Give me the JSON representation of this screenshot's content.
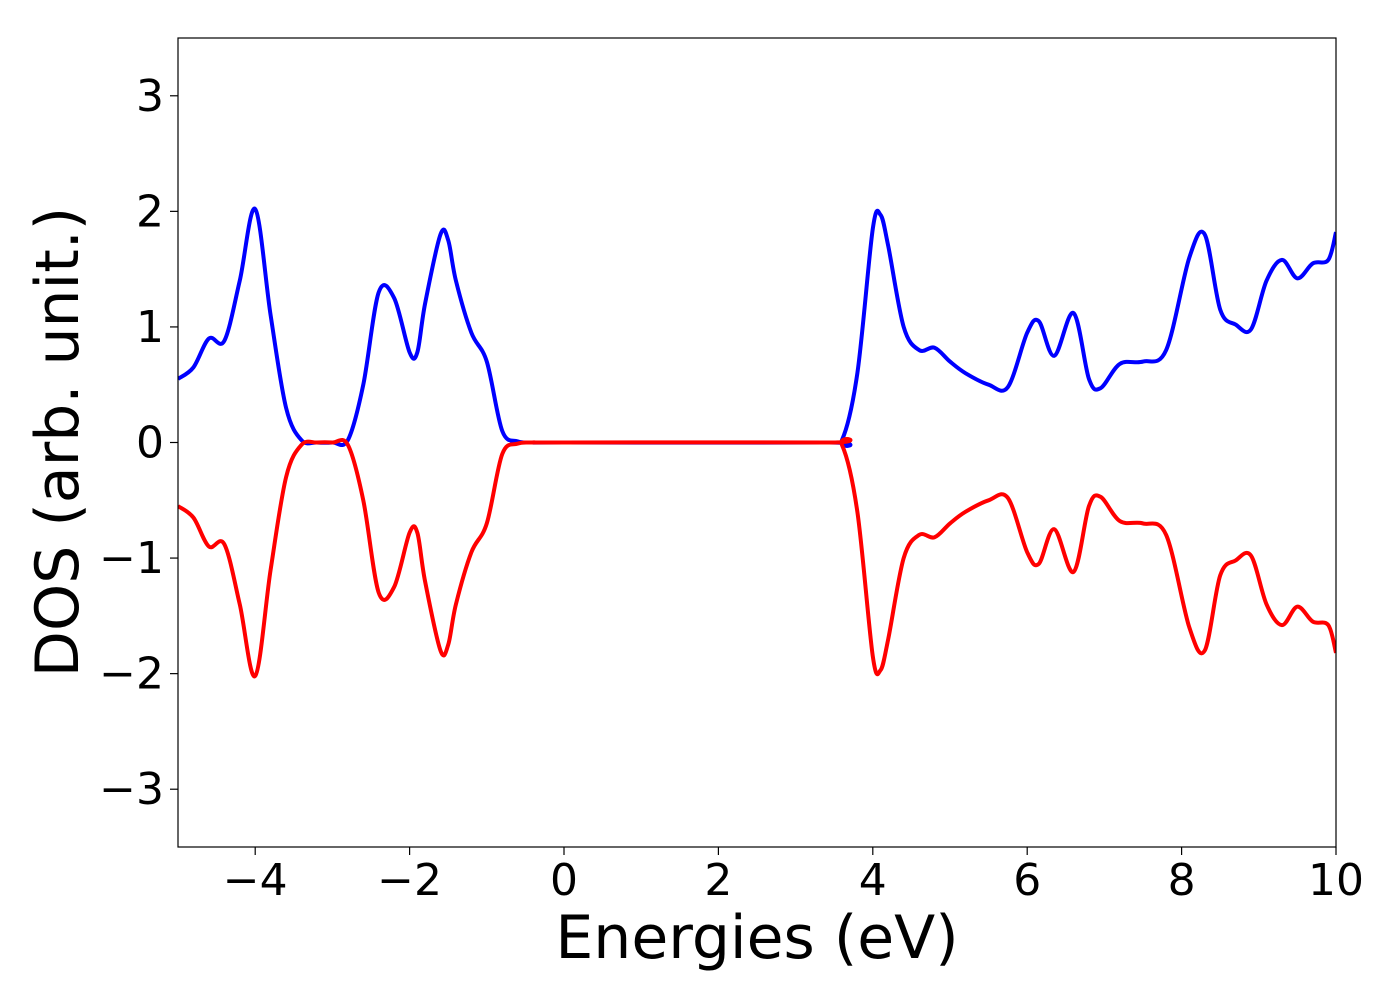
{
  "chart_data": {
    "type": "line",
    "title": "",
    "xlabel": "Energies (eV)",
    "ylabel": "DOS (arb. unit.)",
    "xlim": [
      -5,
      10
    ],
    "ylim": [
      -3.5,
      3.5
    ],
    "xticks": [
      -4,
      -2,
      0,
      2,
      4,
      6,
      8,
      10
    ],
    "yticks": [
      -3,
      -2,
      -1,
      0,
      1,
      2,
      3
    ],
    "xtick_labels": [
      "−4",
      "−2",
      "0",
      "2",
      "4",
      "6",
      "8",
      "10"
    ],
    "ytick_labels": [
      "−3",
      "−2",
      "−1",
      "0",
      "1",
      "2",
      "3"
    ],
    "grid": false,
    "legend": "none",
    "series": [
      {
        "color": "#0000ff",
        "x": [
          -5.0,
          -4.8,
          -4.6,
          -4.4,
          -4.2,
          -4.0,
          -3.8,
          -3.6,
          -3.4,
          -3.2,
          -3.0,
          -2.8,
          -2.6,
          -2.4,
          -2.2,
          -2.0,
          -1.9,
          -1.8,
          -1.6,
          -1.5,
          -1.4,
          -1.2,
          -1.0,
          -0.8,
          -0.6,
          -0.4,
          0.0,
          3.4,
          3.6,
          3.8,
          4.0,
          4.1,
          4.2,
          4.4,
          4.6,
          4.8,
          5.0,
          5.2,
          5.5,
          5.75,
          6.0,
          6.15,
          6.35,
          6.6,
          6.8,
          6.95,
          7.2,
          7.5,
          7.8,
          8.1,
          8.3,
          8.5,
          8.7,
          8.9,
          9.1,
          9.3,
          9.5,
          9.7,
          9.9,
          10.0
        ],
        "values": [
          0.55,
          0.65,
          0.9,
          0.88,
          1.4,
          2.02,
          1.1,
          0.3,
          0.02,
          0.0,
          0.0,
          0.02,
          0.5,
          1.3,
          1.25,
          0.78,
          0.78,
          1.2,
          1.8,
          1.75,
          1.4,
          0.95,
          0.7,
          0.1,
          0.01,
          0.0,
          0.0,
          0.0,
          0.02,
          0.6,
          1.85,
          1.97,
          1.7,
          1.0,
          0.8,
          0.82,
          0.7,
          0.6,
          0.5,
          0.48,
          0.95,
          1.05,
          0.75,
          1.12,
          0.55,
          0.47,
          0.68,
          0.7,
          0.8,
          1.6,
          1.8,
          1.15,
          1.02,
          0.98,
          1.4,
          1.58,
          1.42,
          1.55,
          1.58,
          1.82
        ]
      },
      {
        "color": "#ff0000",
        "x": [
          -5.0,
          -4.8,
          -4.6,
          -4.4,
          -4.2,
          -4.0,
          -3.8,
          -3.6,
          -3.4,
          -3.2,
          -3.0,
          -2.8,
          -2.6,
          -2.4,
          -2.2,
          -2.0,
          -1.9,
          -1.8,
          -1.6,
          -1.5,
          -1.4,
          -1.2,
          -1.0,
          -0.8,
          -0.6,
          -0.4,
          0.0,
          3.4,
          3.6,
          3.8,
          4.0,
          4.1,
          4.2,
          4.4,
          4.6,
          4.8,
          5.0,
          5.2,
          5.5,
          5.75,
          6.0,
          6.15,
          6.35,
          6.6,
          6.8,
          6.95,
          7.2,
          7.5,
          7.8,
          8.1,
          8.3,
          8.5,
          8.7,
          8.9,
          9.1,
          9.3,
          9.5,
          9.7,
          9.9,
          10.0
        ],
        "values": [
          -0.55,
          -0.65,
          -0.9,
          -0.88,
          -1.4,
          -2.02,
          -1.1,
          -0.3,
          -0.02,
          0.0,
          0.0,
          -0.02,
          -0.5,
          -1.3,
          -1.25,
          -0.78,
          -0.78,
          -1.2,
          -1.8,
          -1.75,
          -1.4,
          -0.95,
          -0.7,
          -0.1,
          -0.01,
          0.0,
          0.0,
          0.0,
          -0.02,
          -0.6,
          -1.85,
          -1.97,
          -1.7,
          -1.0,
          -0.8,
          -0.82,
          -0.7,
          -0.6,
          -0.5,
          -0.48,
          -0.95,
          -1.05,
          -0.75,
          -1.12,
          -0.55,
          -0.47,
          -0.68,
          -0.7,
          -0.8,
          -1.6,
          -1.8,
          -1.15,
          -1.02,
          -0.98,
          -1.4,
          -1.58,
          -1.42,
          -1.55,
          -1.58,
          -1.82
        ]
      }
    ]
  }
}
